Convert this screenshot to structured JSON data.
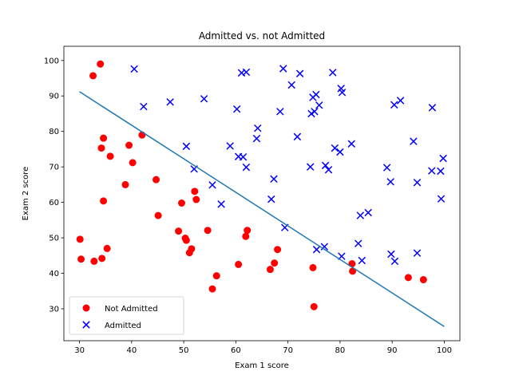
{
  "chart_data": {
    "type": "scatter",
    "title": "Admitted vs. not Admitted",
    "xlabel": "Exam 1 score",
    "ylabel": "Exam 2 score",
    "xlim": [
      27,
      103
    ],
    "ylim": [
      21,
      104
    ],
    "xticks": [
      30,
      40,
      50,
      60,
      70,
      80,
      90,
      100
    ],
    "yticks": [
      30,
      40,
      50,
      60,
      70,
      80,
      90,
      100
    ],
    "grid": false,
    "legend_position": "lower-left",
    "series": [
      {
        "name": "Not Admitted",
        "marker": "circle",
        "color": "#ff0000",
        "points": [
          [
            34.0,
            99.0
          ],
          [
            32.6,
            95.7
          ],
          [
            34.2,
            75.3
          ],
          [
            34.6,
            78.1
          ],
          [
            35.9,
            73.0
          ],
          [
            39.5,
            76.1
          ],
          [
            40.2,
            71.2
          ],
          [
            42.0,
            79.0
          ],
          [
            38.8,
            65.0
          ],
          [
            34.6,
            60.4
          ],
          [
            44.7,
            66.4
          ],
          [
            45.1,
            56.3
          ],
          [
            30.1,
            49.6
          ],
          [
            30.3,
            44.0
          ],
          [
            32.8,
            43.4
          ],
          [
            34.3,
            44.2
          ],
          [
            35.3,
            47.0
          ],
          [
            49.0,
            51.9
          ],
          [
            49.6,
            59.8
          ],
          [
            50.3,
            49.9
          ],
          [
            50.5,
            49.3
          ],
          [
            51.1,
            45.8
          ],
          [
            51.5,
            46.9
          ],
          [
            52.1,
            63.1
          ],
          [
            52.4,
            60.8
          ],
          [
            54.6,
            52.1
          ],
          [
            55.5,
            35.6
          ],
          [
            56.3,
            39.3
          ],
          [
            60.5,
            42.5
          ],
          [
            61.9,
            50.4
          ],
          [
            62.2,
            52.1
          ],
          [
            66.6,
            41.1
          ],
          [
            67.4,
            42.9
          ],
          [
            68.0,
            46.7
          ],
          [
            74.8,
            41.6
          ],
          [
            75.0,
            30.6
          ],
          [
            82.3,
            42.7
          ],
          [
            82.4,
            40.6
          ],
          [
            93.1,
            38.8
          ],
          [
            96.0,
            38.2
          ]
        ]
      },
      {
        "name": "Admitted",
        "marker": "x",
        "color": "#0000ff",
        "points": [
          [
            40.5,
            97.6
          ],
          [
            42.3,
            87.0
          ],
          [
            47.4,
            88.3
          ],
          [
            53.9,
            89.2
          ],
          [
            60.2,
            86.3
          ],
          [
            61.1,
            96.5
          ],
          [
            62.0,
            96.7
          ],
          [
            64.2,
            80.9
          ],
          [
            64.0,
            78.0
          ],
          [
            68.5,
            85.6
          ],
          [
            69.1,
            97.7
          ],
          [
            70.7,
            93.1
          ],
          [
            72.3,
            96.3
          ],
          [
            74.5,
            85.0
          ],
          [
            74.8,
            89.6
          ],
          [
            75.4,
            90.4
          ],
          [
            75.1,
            85.6
          ],
          [
            76.0,
            87.4
          ],
          [
            78.6,
            96.6
          ],
          [
            80.2,
            92.1
          ],
          [
            80.4,
            91.0
          ],
          [
            50.5,
            75.8
          ],
          [
            52.0,
            69.4
          ],
          [
            55.5,
            64.9
          ],
          [
            57.2,
            59.5
          ],
          [
            58.9,
            75.9
          ],
          [
            60.5,
            72.9
          ],
          [
            61.4,
            72.8
          ],
          [
            62.0,
            69.9
          ],
          [
            66.8,
            60.9
          ],
          [
            67.3,
            66.6
          ],
          [
            69.4,
            52.9
          ],
          [
            71.8,
            78.5
          ],
          [
            74.3,
            70.0
          ],
          [
            77.2,
            70.4
          ],
          [
            77.8,
            69.2
          ],
          [
            79.0,
            75.3
          ],
          [
            80.0,
            74.2
          ],
          [
            82.2,
            76.5
          ],
          [
            83.5,
            48.4
          ],
          [
            83.9,
            56.3
          ],
          [
            84.2,
            43.6
          ],
          [
            85.4,
            57.1
          ],
          [
            89.0,
            69.8
          ],
          [
            89.7,
            65.8
          ],
          [
            90.4,
            87.5
          ],
          [
            91.6,
            88.7
          ],
          [
            94.1,
            77.2
          ],
          [
            94.8,
            65.6
          ],
          [
            97.7,
            86.7
          ],
          [
            97.6,
            68.9
          ],
          [
            99.3,
            68.8
          ],
          [
            99.8,
            72.4
          ],
          [
            99.4,
            61.0
          ],
          [
            94.8,
            45.7
          ],
          [
            89.8,
            45.4
          ],
          [
            90.5,
            43.4
          ],
          [
            80.3,
            44.8
          ],
          [
            77.0,
            47.5
          ],
          [
            75.5,
            46.7
          ]
        ]
      }
    ],
    "decision_boundary": {
      "type": "line",
      "color": "#1f77b4",
      "points": [
        [
          30.0,
          91.2
        ],
        [
          100.0,
          25.0
        ]
      ]
    }
  }
}
